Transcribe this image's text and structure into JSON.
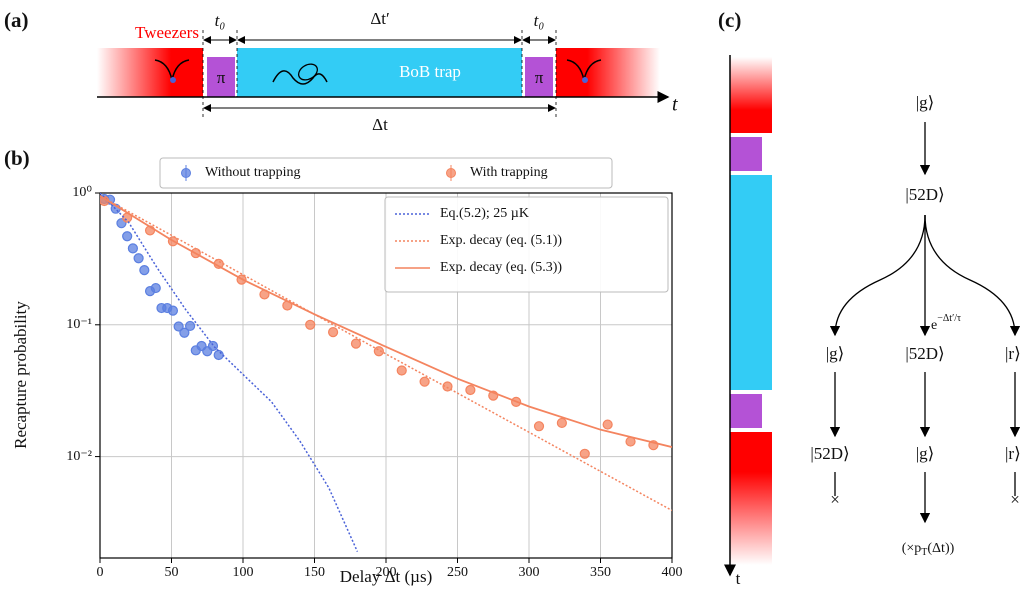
{
  "panel_a": {
    "label": "(a)",
    "tweezers": "Tweezers",
    "t0_left": "t₀",
    "dt_prime": "Δt′",
    "t0_right": "t₀",
    "pi_left": "π",
    "bob": "BoB trap",
    "pi_right": "π",
    "time_axis": "t",
    "dt": "Δt"
  },
  "chart_data": {
    "type": "scatter",
    "panel_label": "(b)",
    "x_label": "Delay Δt (µs)",
    "y_label": "Recapture probability",
    "xlim": [
      0,
      400
    ],
    "xticks": [
      0,
      50,
      100,
      150,
      200,
      250,
      300,
      350,
      400
    ],
    "ylim": [
      0.0017,
      1
    ],
    "yticks": [
      {
        "value": 1,
        "label": "10⁰"
      },
      {
        "value": 0.1,
        "label": "10⁻¹"
      },
      {
        "value": 0.01,
        "label": "10⁻²"
      }
    ],
    "log_y": true,
    "grid": true,
    "legend": "upper right",
    "series": [
      {
        "name": "Without trapping",
        "color": "#5b7fe0",
        "style": "markers",
        "x": [
          3,
          7,
          11,
          15,
          19,
          23,
          27,
          31,
          35,
          39,
          43,
          47,
          51,
          55,
          59,
          63,
          67,
          71,
          75,
          79,
          83
        ],
        "values": [
          0.9,
          0.89,
          0.76,
          0.59,
          0.47,
          0.38,
          0.32,
          0.26,
          0.18,
          0.19,
          0.134,
          0.134,
          0.128,
          0.097,
          0.087,
          0.098,
          0.064,
          0.069,
          0.063,
          0.069,
          0.059
        ]
      },
      {
        "name": "With trapping",
        "color": "#f4845f",
        "style": "markers",
        "x": [
          3,
          19,
          35,
          51,
          67,
          83,
          99,
          115,
          131,
          147,
          163,
          179,
          195,
          211,
          227,
          243,
          259,
          275,
          291,
          307,
          323,
          339,
          355,
          371,
          387
        ],
        "values": [
          0.87,
          0.65,
          0.52,
          0.43,
          0.35,
          0.29,
          0.22,
          0.17,
          0.14,
          0.1,
          0.088,
          0.072,
          0.063,
          0.045,
          0.037,
          0.034,
          0.032,
          0.029,
          0.026,
          0.017,
          0.018,
          0.0105,
          0.0175,
          0.013,
          0.0122
        ]
      },
      {
        "name": "Eq.(5.2); 25 µK",
        "color": "#4a62d8",
        "style": "dotted",
        "x": [
          0,
          20,
          40,
          60,
          80,
          100,
          120,
          140,
          160,
          180
        ],
        "values": [
          1,
          0.6,
          0.27,
          0.13,
          0.068,
          0.042,
          0.026,
          0.013,
          0.0058,
          0.0019
        ]
      },
      {
        "name": "Exp. decay (eq. (5.1))",
        "color": "#f4845f",
        "style": "dotted",
        "x": [
          0,
          100,
          200,
          300,
          400
        ],
        "values": [
          0.95,
          0.24,
          0.06,
          0.0153,
          0.0039
        ]
      },
      {
        "name": "Exp. decay (eq. (5.3))",
        "color": "#f4845f",
        "style": "solid",
        "x": [
          0,
          50,
          100,
          150,
          200,
          250,
          300,
          350,
          400
        ],
        "values": [
          0.95,
          0.44,
          0.22,
          0.12,
          0.068,
          0.039,
          0.024,
          0.016,
          0.0118
        ]
      }
    ]
  },
  "panel_c": {
    "label": "(c)",
    "time_axis": "t",
    "top": "|g⟩",
    "mid": "|52D⟩",
    "exp_base": "e",
    "exp_power": "−Δt′/τ",
    "row1": [
      "|g⟩",
      "|52D⟩",
      "|r⟩"
    ],
    "row2": [
      "|52D⟩",
      "|g⟩",
      "|r⟩"
    ],
    "lost": [
      "×",
      "×"
    ],
    "prob_prefix": "(×p",
    "prob_sub": "T",
    "prob_suffix": "(Δt))"
  }
}
